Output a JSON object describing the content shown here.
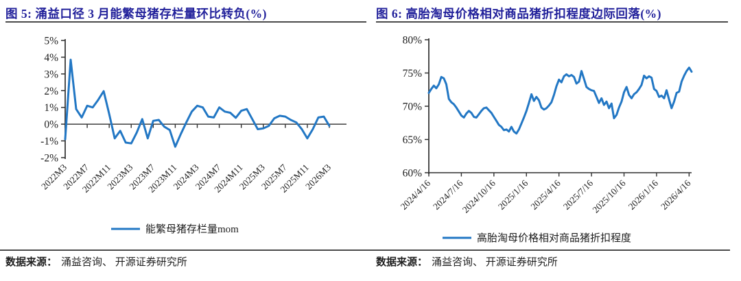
{
  "figure5": {
    "title": "图 5:  涌益口径 3 月能繁母猪存栏量环比转负(%)",
    "source_label": "数据来源：",
    "source_body": "涌益咨询、 开源证券研究所"
  },
  "figure6": {
    "title": "图 6:  高胎淘母价格相对商品猪折扣程度边际回落(%)",
    "source_label": "数据来源：",
    "source_body": "涌益咨询、 开源证券研究所"
  },
  "colors": {
    "line_blue": "#2277c4",
    "title_navy": "#22219b",
    "axis_dark": "#2e2e2e"
  },
  "chart_data": [
    {
      "type": "line",
      "title": "涌益口径3月能繁母猪存栏量环比转负",
      "legend": "能繁母猪存栏量mom",
      "color": "#2277c4",
      "ylim": [
        -2,
        5
      ],
      "yticks": [
        5,
        4,
        3,
        2,
        1,
        0,
        -1,
        -2
      ],
      "ytick_suffix": "%",
      "x_axis_at_value": 0,
      "tick_labels": [
        "2022M3",
        "2022M7",
        "2022M11",
        "2023M3",
        "2023M7",
        "2023M11",
        "2024M3",
        "2024M7",
        "2024M11",
        "2025M3",
        "2025M7",
        "2025M11",
        "2026M3"
      ],
      "tick_every": 4,
      "x_unit": "month",
      "values": [
        -0.9,
        3.85,
        0.9,
        0.4,
        1.1,
        1.0,
        1.45,
        1.97,
        0.6,
        -0.85,
        -0.4,
        -1.1,
        -1.15,
        -0.5,
        0.3,
        -0.85,
        0.2,
        0.25,
        -0.15,
        -0.35,
        -1.35,
        -0.6,
        0.1,
        0.75,
        1.1,
        1.0,
        0.45,
        0.4,
        1.0,
        0.75,
        0.68,
        0.38,
        0.8,
        0.9,
        0.3,
        -0.3,
        -0.25,
        -0.1,
        0.35,
        0.5,
        0.45,
        0.25,
        0.1,
        -0.3,
        -0.85,
        -0.3,
        0.4,
        0.45,
        -0.1
      ]
    },
    {
      "type": "line",
      "title": "高胎淘母价格相对商品猪折扣程度边际回落",
      "legend": "高胎淘母价格相对商品猪折扣程度",
      "color": "#2277c4",
      "ylim": [
        60,
        80
      ],
      "yticks": [
        80,
        75,
        70,
        65,
        60
      ],
      "ytick_suffix": "%",
      "x_axis_at_value": 60,
      "tick_labels": [
        "2024/4/16",
        "2024/7/16",
        "2024/10/16",
        "2025/1/16",
        "2025/4/16",
        "2025/7/16",
        "2025/10/16",
        "2026/1/16",
        "2026/4/16"
      ],
      "tick_every": 13,
      "x_unit": "week",
      "values": [
        72.0,
        72.6,
        73.1,
        72.7,
        73.3,
        74.4,
        74.2,
        73.3,
        71.1,
        70.6,
        70.3,
        69.8,
        69.2,
        68.6,
        68.3,
        68.9,
        69.3,
        69.0,
        68.4,
        68.3,
        68.8,
        69.3,
        69.7,
        69.8,
        69.4,
        69.0,
        68.4,
        67.8,
        67.2,
        66.9,
        66.4,
        66.5,
        66.2,
        66.9,
        66.2,
        65.9,
        66.5,
        67.4,
        68.3,
        69.3,
        70.5,
        71.8,
        70.8,
        71.4,
        70.9,
        69.8,
        69.5,
        69.7,
        70.1,
        70.6,
        71.7,
        73.0,
        74.0,
        73.6,
        74.5,
        74.8,
        74.5,
        74.7,
        74.4,
        73.4,
        73.7,
        75.3,
        74.1,
        72.9,
        72.6,
        72.4,
        72.3,
        71.4,
        70.5,
        71.2,
        70.2,
        70.7,
        69.7,
        70.4,
        68.2,
        68.7,
        69.8,
        70.7,
        72.1,
        72.9,
        71.7,
        71.2,
        71.8,
        72.1,
        72.6,
        73.2,
        74.6,
        74.2,
        74.5,
        74.3,
        72.6,
        72.3,
        71.4,
        71.6,
        71.2,
        72.4,
        71.0,
        69.7,
        70.7,
        72.0,
        72.2,
        73.7,
        74.6,
        75.3,
        75.8,
        75.2
      ]
    }
  ]
}
